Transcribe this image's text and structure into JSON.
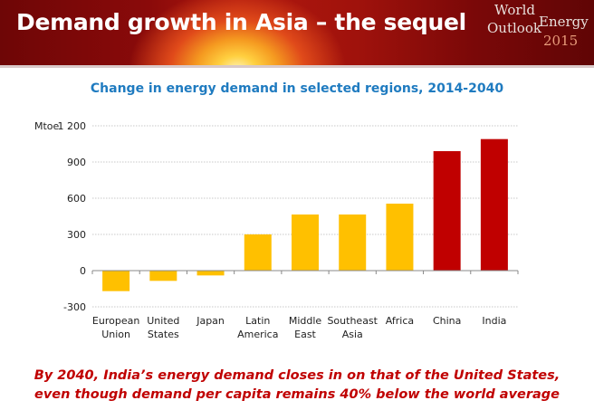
{
  "header": {
    "title": "Demand growth in Asia – the sequel",
    "logo": {
      "word1": "World",
      "word2": "Energy",
      "word3": "Outlook",
      "year": "2015"
    }
  },
  "chart_data": {
    "type": "bar",
    "title": "Change in energy demand in selected regions, 2014-2040",
    "ylabel": "Mtoe",
    "xlabel": "",
    "categories": [
      [
        "European",
        "Union"
      ],
      [
        "United",
        "States"
      ],
      [
        "Japan"
      ],
      [
        "Latin",
        "America"
      ],
      [
        "Middle",
        "East"
      ],
      [
        "Southeast",
        "Asia"
      ],
      [
        "Africa"
      ],
      [
        "China"
      ],
      [
        "India"
      ]
    ],
    "values": [
      -170,
      -85,
      -40,
      300,
      465,
      465,
      555,
      990,
      1090
    ],
    "bar_colors": [
      "#ffc000",
      "#ffc000",
      "#ffc000",
      "#ffc000",
      "#ffc000",
      "#ffc000",
      "#ffc000",
      "#c00000",
      "#c00000"
    ],
    "ylim": [
      -300,
      1200
    ],
    "yticks": [
      -300,
      0,
      300,
      600,
      900,
      1200
    ],
    "ytick_labels": [
      "-300",
      "0",
      "300",
      "600",
      "900",
      "1 200"
    ],
    "grid": true
  },
  "footer": {
    "line1": "By 2040, India’s energy demand closes in on that of the United States,",
    "line2": "even though demand per capita remains 40% below the world average"
  }
}
